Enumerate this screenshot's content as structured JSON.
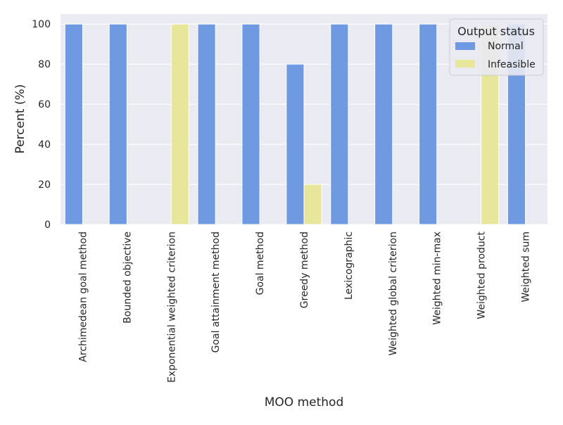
{
  "chart_data": {
    "type": "bar",
    "xlabel": "MOO method",
    "ylabel": "Percent (%)",
    "ylim": [
      0,
      105
    ],
    "yticks": [
      0,
      20,
      40,
      60,
      80,
      100
    ],
    "grid": true,
    "categories": [
      "Archimedean goal method",
      "Bounded objective",
      "Exponential weighted criterion",
      "Goal attainment method",
      "Goal method",
      "Greedy method",
      "Lexicographic",
      "Weighted global criterion",
      "Weighted min-max",
      "Weighted product",
      "Weighted sum"
    ],
    "legend": {
      "title": "Output status",
      "placement": "top-right"
    },
    "series": [
      {
        "name": "Normal",
        "color": "#6f99e0",
        "values": [
          100,
          100,
          0,
          100,
          100,
          80,
          100,
          100,
          100,
          0,
          100
        ]
      },
      {
        "name": "Infeasible",
        "color": "#e8e69b",
        "values": [
          0,
          0,
          100,
          0,
          0,
          20,
          0,
          0,
          0,
          100,
          0
        ]
      }
    ]
  }
}
